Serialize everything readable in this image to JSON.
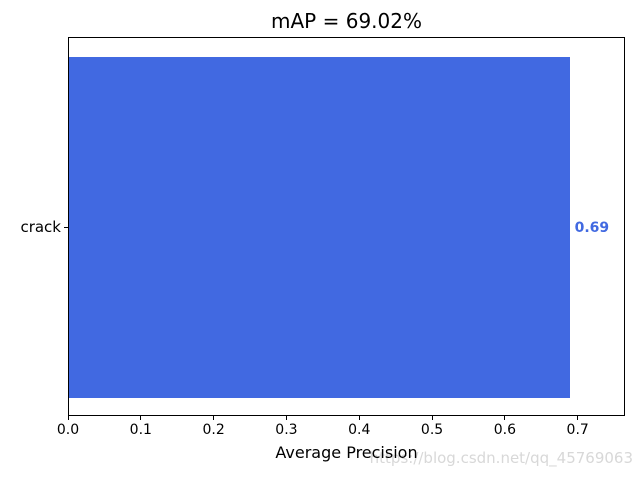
{
  "figure": {
    "watermark": "https://blog.csdn.net/qq_45769063",
    "watermark_color": "#d8d8d8"
  },
  "chart_data": {
    "type": "bar",
    "orientation": "horizontal",
    "title": "mAP = 69.02%",
    "xlabel": "Average Precision",
    "ylabel": "",
    "categories": [
      "crack"
    ],
    "values": [
      0.69
    ],
    "value_labels": [
      "0.69"
    ],
    "xtick_labels": [
      "0.0",
      "0.1",
      "0.2",
      "0.3",
      "0.4",
      "0.5",
      "0.6",
      "0.7"
    ],
    "xlim": [
      0.0,
      0.765
    ],
    "grid": false,
    "legend": "none",
    "colors": {
      "bar": "#4169e1",
      "value_label": "#4169e1",
      "axis": "#000000",
      "text": "#000000"
    }
  }
}
